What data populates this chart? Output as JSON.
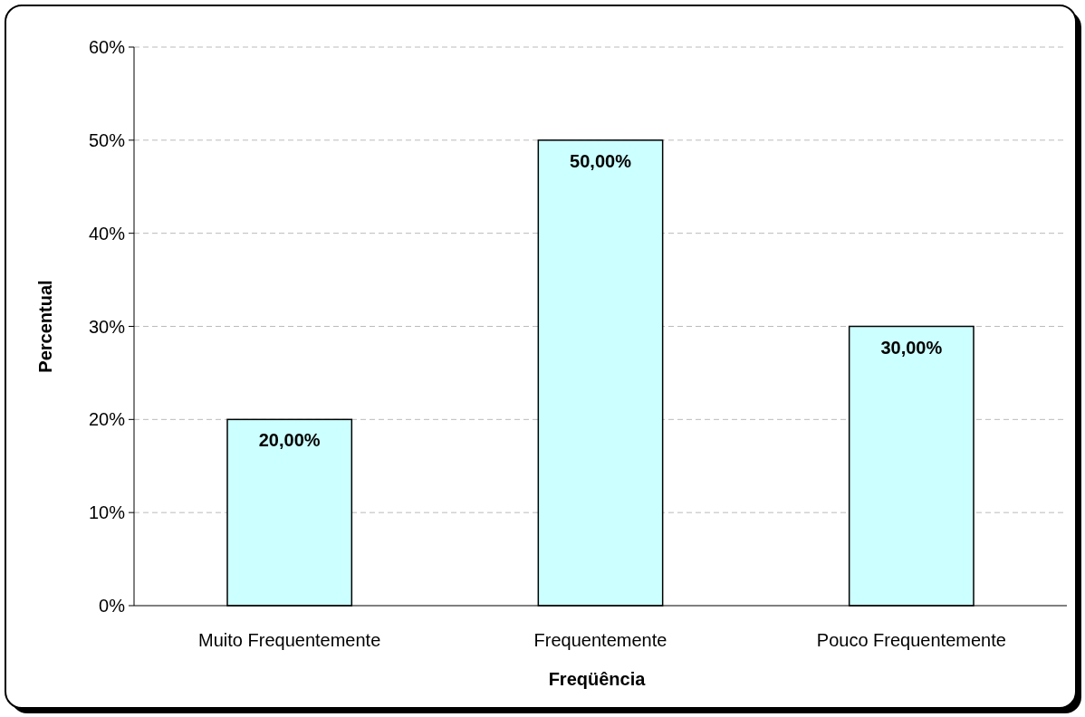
{
  "chart_data": {
    "type": "bar",
    "xlabel": "Freqüência",
    "ylabel": "Percentual",
    "categories": [
      "Muito Frequentemente",
      "Frequentemente",
      "Pouco Frequentemente"
    ],
    "values": [
      20,
      50,
      30
    ],
    "color": "#ccffff",
    "value_labels": [
      "20,00%",
      "50,00%",
      "30,00%"
    ],
    "ylim": [
      0,
      60
    ],
    "yticks": [
      {
        "value": 0,
        "label": "0%"
      },
      {
        "value": 10,
        "label": "10%"
      },
      {
        "value": 20,
        "label": "20%"
      },
      {
        "value": 30,
        "label": "30%"
      },
      {
        "value": 40,
        "label": "40%"
      },
      {
        "value": 50,
        "label": "50%"
      },
      {
        "value": 60,
        "label": "60%"
      }
    ],
    "grid": "y"
  }
}
